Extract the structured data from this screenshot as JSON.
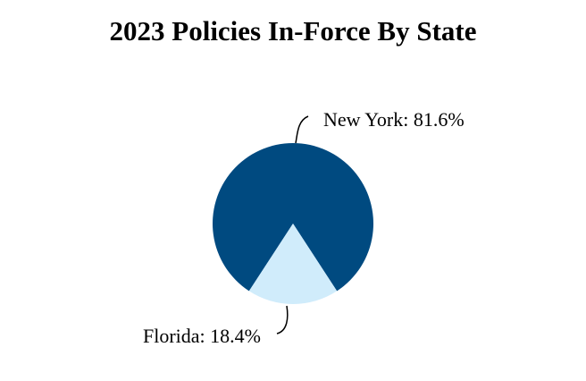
{
  "chart_data": {
    "type": "pie",
    "title": "2023 Policies In-Force By State",
    "categories": [
      "New York",
      "Florida"
    ],
    "values": [
      81.6,
      18.4
    ],
    "value_labels": [
      "New York: 81.6%",
      "Florida: 18.4%"
    ],
    "colors": [
      "#004a80",
      "#d0ecfb"
    ]
  }
}
